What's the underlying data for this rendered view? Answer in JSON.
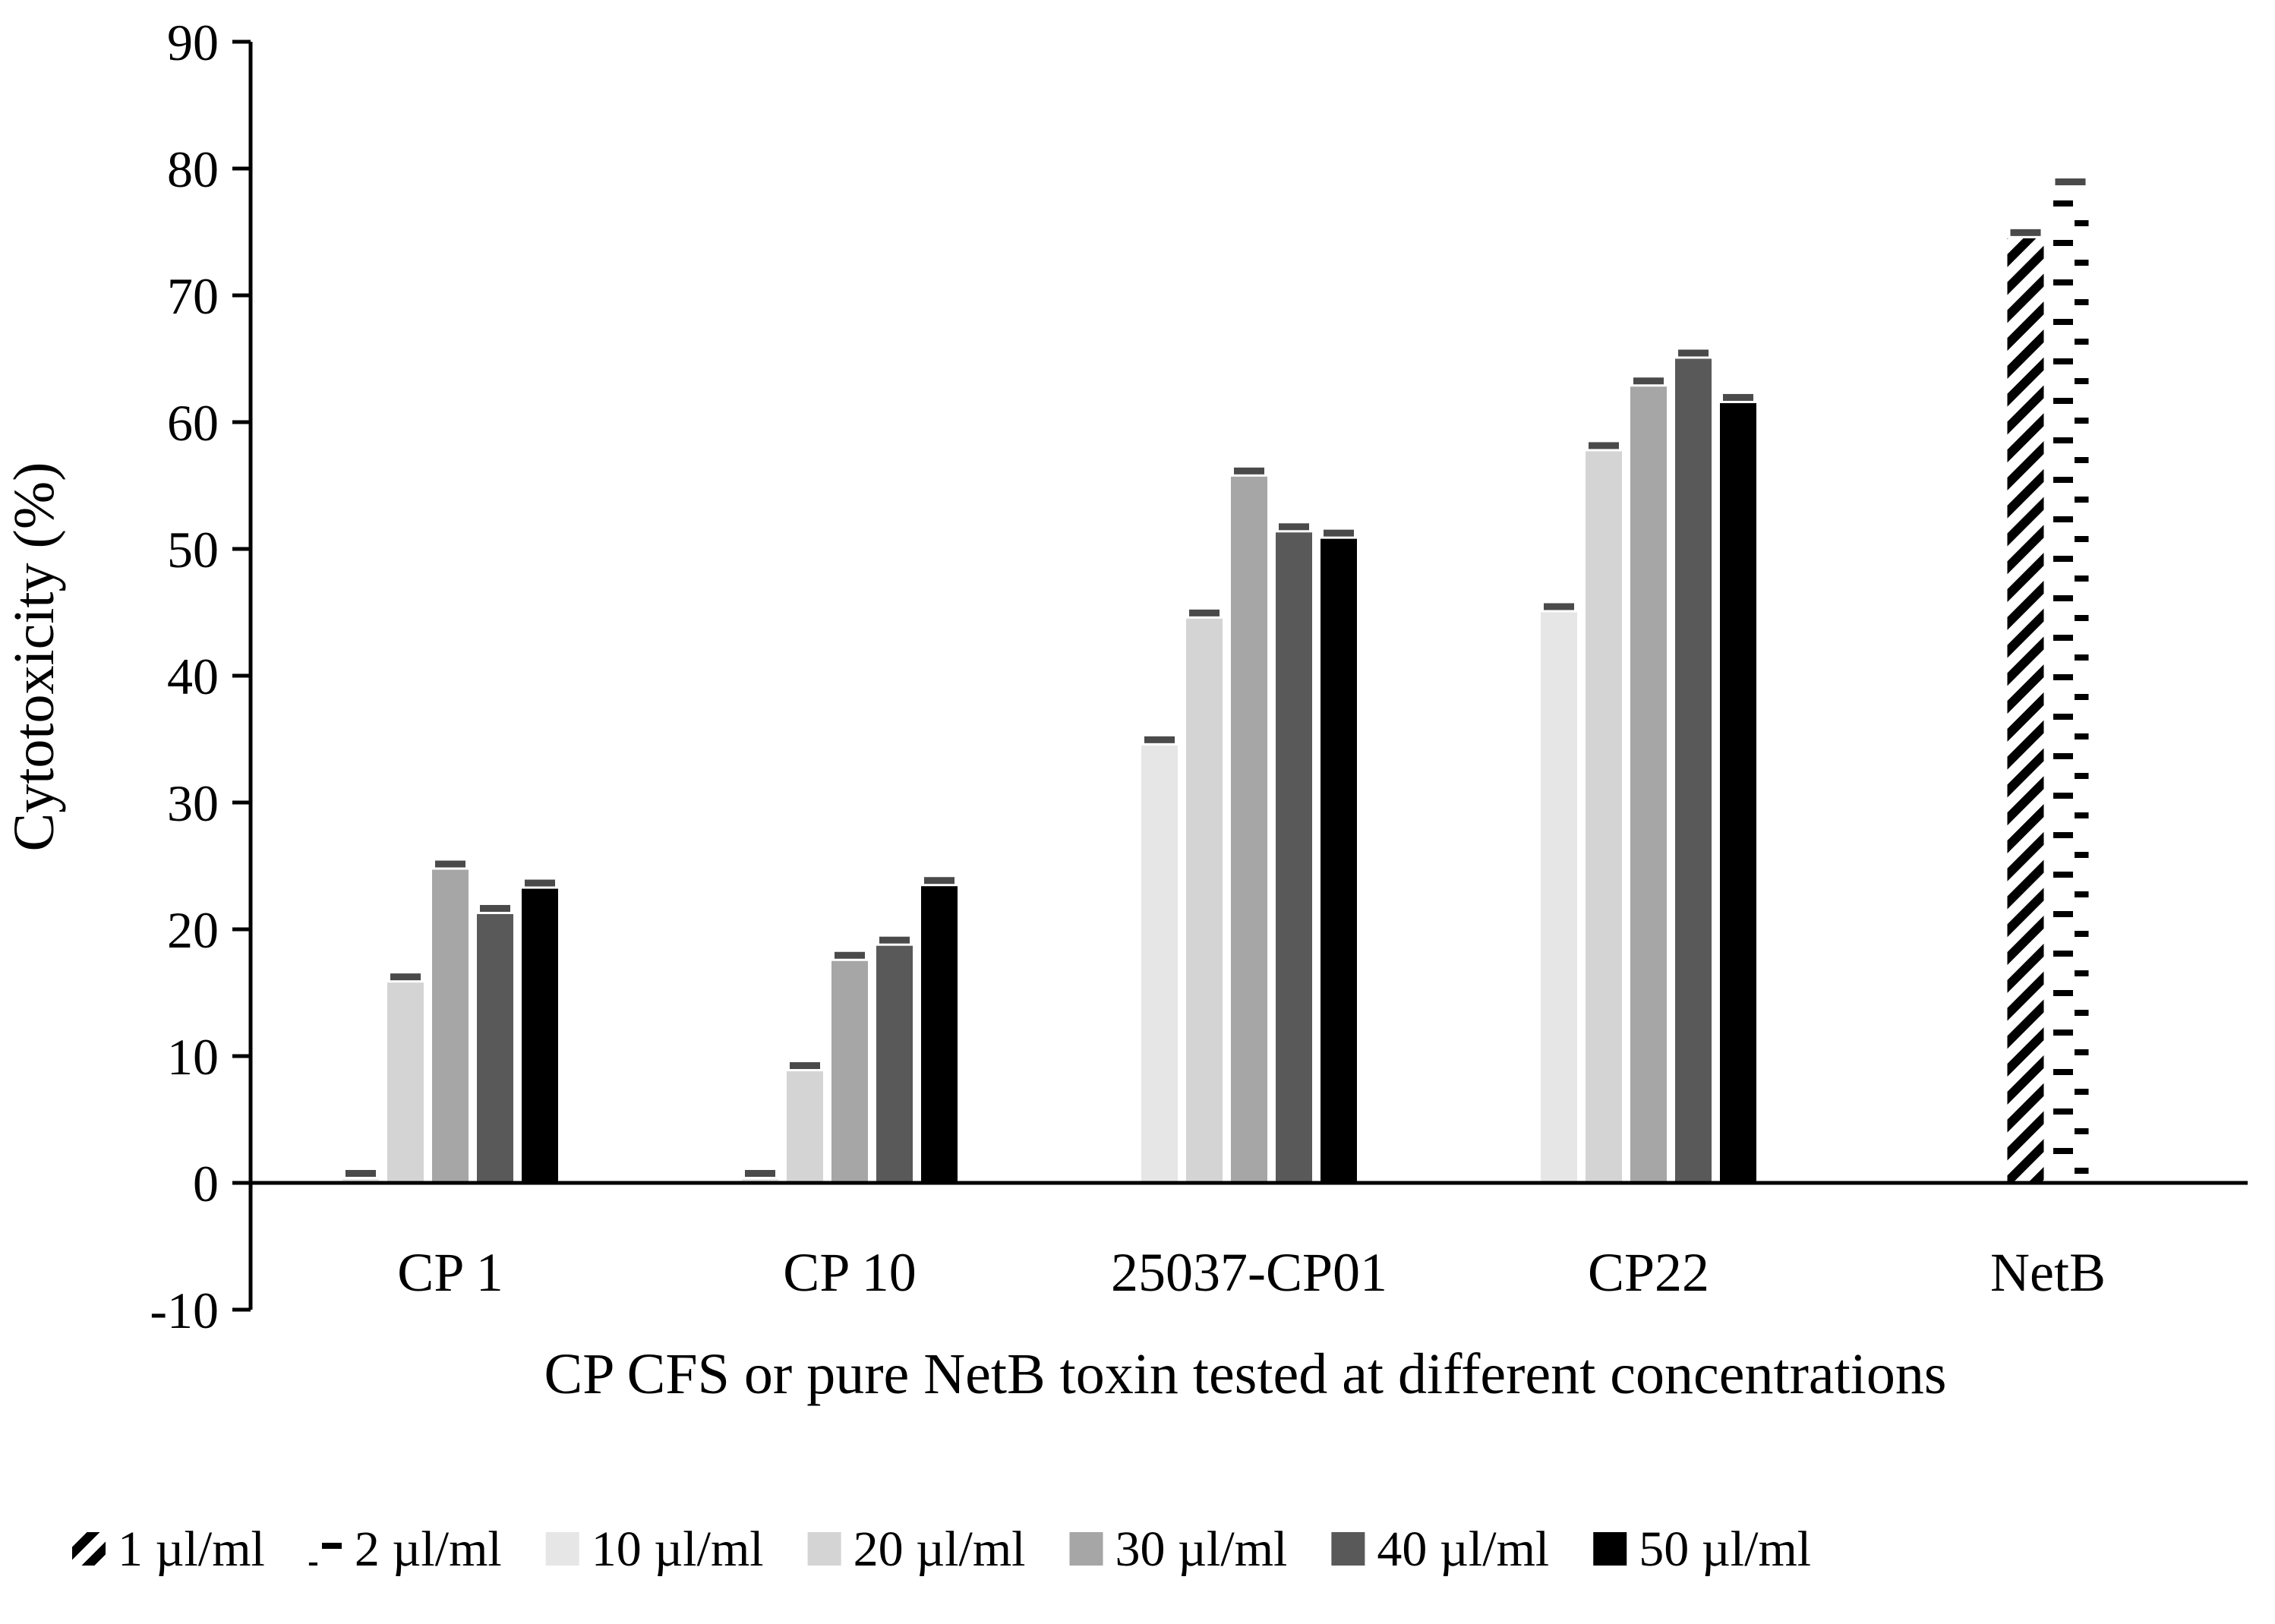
{
  "chart_data": {
    "type": "bar",
    "title": "",
    "xlabel": "CP CFS or pure NetB toxin tested at different concentrations",
    "ylabel": "Cytotoxicity (%)",
    "ylim": [
      -10,
      90
    ],
    "yticks": [
      -10,
      0,
      10,
      20,
      30,
      40,
      50,
      60,
      70,
      80,
      90
    ],
    "grid": false,
    "legend_position": "bottom",
    "categories": [
      "CP 1",
      "CP 10",
      "25037-CP01",
      "CP22",
      "NetB"
    ],
    "series": [
      {
        "name": "1 µl/ml",
        "color": "#ffffff",
        "pattern": "diagonal-hatch",
        "values": [
          null,
          null,
          null,
          null,
          74.5
        ]
      },
      {
        "name": "2 µl/ml",
        "color": "#ffffff",
        "pattern": "dash-hatch",
        "values": [
          null,
          null,
          null,
          null,
          78.5
        ]
      },
      {
        "name": "10 µl/ml",
        "color": "#e6e6e6",
        "values": [
          0.3,
          0.3,
          34.5,
          45.0,
          null
        ]
      },
      {
        "name": "20 µl/ml",
        "color": "#d4d4d4",
        "values": [
          15.8,
          8.8,
          44.5,
          57.7,
          null
        ]
      },
      {
        "name": "30 µl/ml",
        "color": "#a6a6a6",
        "values": [
          24.7,
          17.5,
          55.7,
          62.8,
          null
        ]
      },
      {
        "name": "40 µl/ml",
        "color": "#595959",
        "values": [
          21.2,
          18.7,
          51.3,
          65.0,
          null
        ]
      },
      {
        "name": "50 µl/ml",
        "color": "#000000",
        "values": [
          23.2,
          23.4,
          50.8,
          61.5,
          null
        ]
      }
    ]
  }
}
